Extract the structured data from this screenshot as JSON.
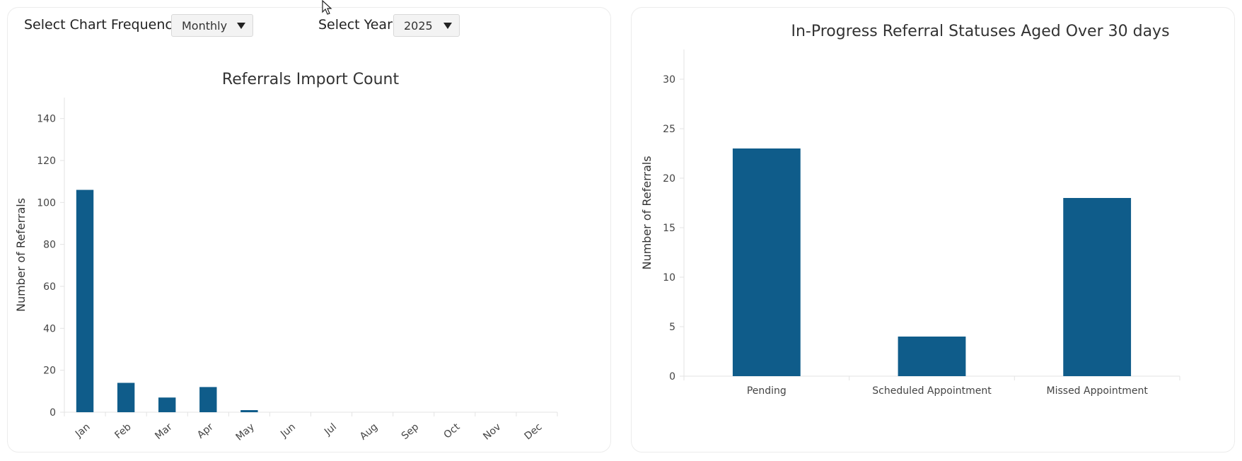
{
  "controls": {
    "frequency_label": "Select Chart Frequency:",
    "frequency_value": "Monthly",
    "year_label": "Select Year:",
    "year_value": "2025"
  },
  "colors": {
    "bar": "#0f5c8a",
    "axis": "#e3e3e3",
    "text": "#333333",
    "tick": "#444444"
  },
  "chart_data": [
    {
      "type": "bar",
      "title": "Referrals Import Count",
      "xlabel": "",
      "ylabel": "Number of Referrals",
      "categories": [
        "Jan",
        "Feb",
        "Mar",
        "Apr",
        "May",
        "Jun",
        "Jul",
        "Aug",
        "Sep",
        "Oct",
        "Nov",
        "Dec"
      ],
      "values": [
        106,
        14,
        7,
        12,
        1,
        0,
        0,
        0,
        0,
        0,
        0,
        0
      ],
      "yticks": [
        0,
        20,
        40,
        60,
        80,
        100,
        120,
        140
      ],
      "ylim": [
        0,
        150
      ],
      "grid": false,
      "legend": "none"
    },
    {
      "type": "bar",
      "title": "In-Progress Referral Statuses Aged Over 30 days",
      "xlabel": "",
      "ylabel": "Number of Referrals",
      "categories": [
        "Pending",
        "Scheduled Appointment",
        "Missed Appointment"
      ],
      "values": [
        23,
        4,
        18
      ],
      "yticks": [
        0,
        5,
        10,
        15,
        20,
        25,
        30
      ],
      "ylim": [
        0,
        33
      ],
      "grid": false,
      "legend": "none"
    }
  ]
}
